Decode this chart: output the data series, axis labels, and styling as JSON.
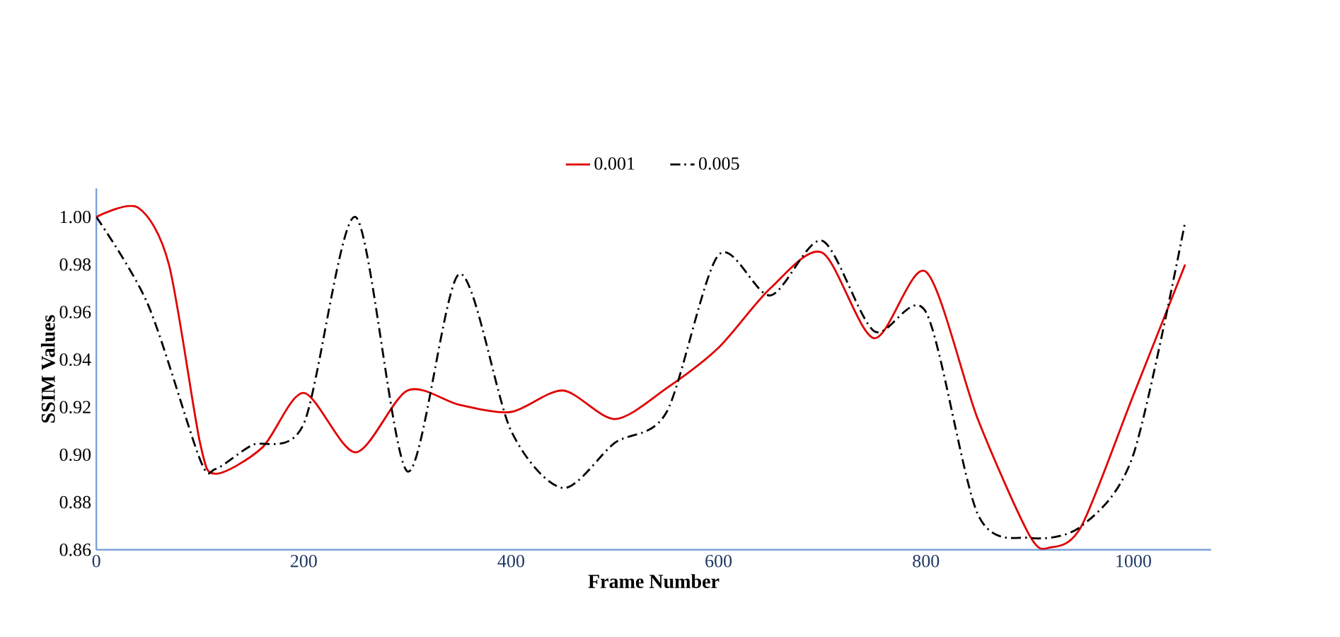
{
  "chart_data": {
    "type": "line",
    "xlabel": "Frame Number",
    "ylabel": "SSIM Values",
    "xlim": [
      0,
      1075
    ],
    "xticks": [
      0,
      200,
      400,
      600,
      800,
      1000
    ],
    "ylim": [
      0.86,
      1.012
    ],
    "yticks": [
      0.86,
      0.88,
      {
        "value": 0.9,
        "label": "0.90"
      },
      0.92,
      0.94,
      0.96,
      0.98,
      {
        "value": 1,
        "label": "1.00"
      }
    ],
    "grid": false,
    "legend": "top",
    "marker": "none",
    "series": [
      {
        "name": "0.001",
        "color": "#e00000",
        "line_style": "solid",
        "x": [
          0,
          40,
          70,
          100,
          115,
          160,
          200,
          250,
          300,
          350,
          400,
          450,
          500,
          550,
          600,
          650,
          700,
          750,
          800,
          850,
          900,
          920,
          950,
          1000,
          1050
        ],
        "values": [
          1.0,
          1.004,
          0.98,
          0.905,
          0.892,
          0.903,
          0.926,
          0.901,
          0.927,
          0.921,
          0.918,
          0.927,
          0.915,
          0.928,
          0.945,
          0.97,
          0.985,
          0.949,
          0.977,
          0.915,
          0.866,
          0.861,
          0.87,
          0.925,
          0.98
        ]
      },
      {
        "name": "0.005",
        "color": "#000000",
        "line_style": "dashdot",
        "x": [
          0,
          50,
          100,
          115,
          150,
          200,
          250,
          300,
          350,
          400,
          450,
          500,
          550,
          600,
          650,
          700,
          750,
          800,
          850,
          900,
          950,
          1000,
          1050
        ],
        "values": [
          1.0,
          0.963,
          0.898,
          0.894,
          0.904,
          0.913,
          1.0,
          0.893,
          0.976,
          0.91,
          0.886,
          0.905,
          0.918,
          0.984,
          0.967,
          0.99,
          0.952,
          0.96,
          0.875,
          0.865,
          0.87,
          0.9,
          0.998
        ]
      }
    ]
  }
}
